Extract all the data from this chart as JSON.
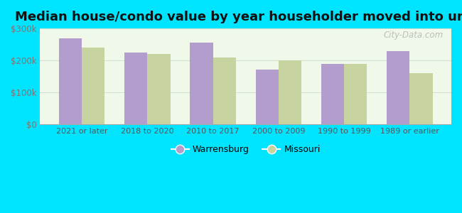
{
  "title": "Median house/condo value by year householder moved into unit",
  "categories": [
    "2021 or later",
    "2018 to 2020",
    "2010 to 2017",
    "2000 to 2009",
    "1990 to 1999",
    "1989 or earlier"
  ],
  "warrensburg": [
    270000,
    225000,
    255000,
    172000,
    188000,
    228000
  ],
  "missouri": [
    240000,
    220000,
    208000,
    200000,
    190000,
    160000
  ],
  "warrensburg_color": "#b39dcc",
  "missouri_color": "#c8d4a0",
  "background_outer": "#00e5ff",
  "background_inner_top": "#d6edcc",
  "background_inner_bottom": "#f0f8ea",
  "ylim": [
    0,
    300000
  ],
  "yticks": [
    0,
    100000,
    200000,
    300000
  ],
  "ytick_labels": [
    "$0",
    "$100k",
    "$200k",
    "$300k"
  ],
  "legend_warrensburg": "Warrensburg",
  "legend_missouri": "Missouri",
  "watermark": "City-Data.com",
  "bar_width": 0.35,
  "title_fontsize": 13,
  "grid_color": "#ccddcc",
  "tick_color": "#777777",
  "label_color": "#555555"
}
